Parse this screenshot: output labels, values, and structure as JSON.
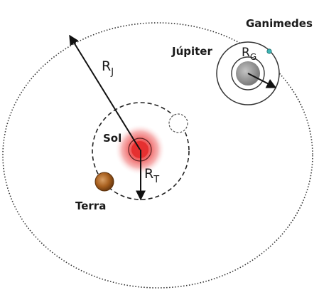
{
  "labels": {
    "ganimedes": "Ganimedes",
    "jupiter": "Júpiter",
    "sol": "Sol",
    "terra": "Terra",
    "r_jupiter": {
      "base": "R",
      "sub": "J"
    },
    "r_terra": {
      "base": "R",
      "sub": "T"
    },
    "r_ganimedes": {
      "base": "R",
      "sub": "G"
    }
  },
  "colors": {
    "sun_core": "#e53030",
    "sun_glow": "#f6b5b5",
    "jupiter_body": "#9a9a9a",
    "earth_body": "#b5651d",
    "ganymede_body": "#3fb5b5",
    "orbit_line": "#333333"
  }
}
